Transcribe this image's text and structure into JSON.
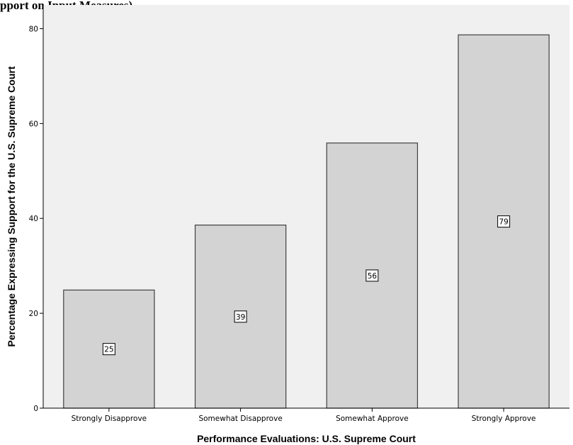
{
  "chart_data": {
    "type": "bar",
    "title_fragment": "pport on Input Measures)",
    "categories": [
      "Strongly Disapprove",
      "Somewhat Disapprove",
      "Somewhat Approve",
      "Strongly Approve"
    ],
    "values": [
      24.9,
      38.6,
      55.9,
      78.7
    ],
    "data_labels": [
      "25",
      "39",
      "56",
      "79"
    ],
    "xlabel": "Performance Evaluations: U.S. Supreme Court",
    "ylabel": "Percentage Expressing Support for the U.S. Supreme Court",
    "ylim": [
      0,
      85
    ],
    "yticks": [
      0,
      20,
      40,
      60,
      80
    ],
    "grid": false,
    "colors": {
      "plot_background": "#f0f0f0",
      "bar_fill": "#d3d3d3",
      "bar_stroke": "#404040",
      "label_box_fill": "#ffffff"
    }
  }
}
